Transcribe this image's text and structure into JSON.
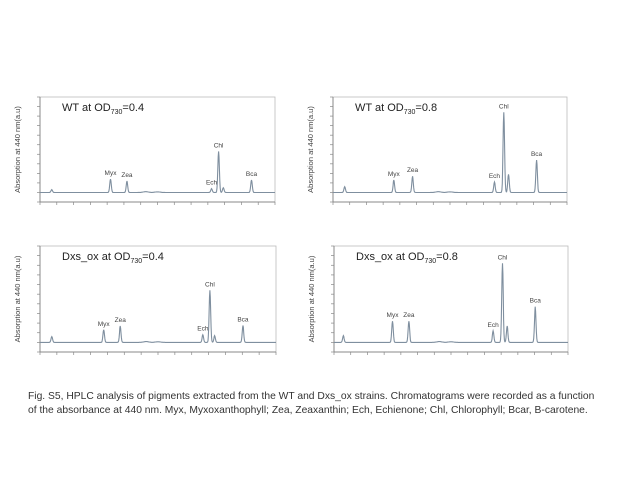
{
  "chart_data": [
    {
      "type": "line",
      "title": {
        "pre": "WT at OD",
        "sub": "730",
        "post": "=0.4"
      },
      "ylabel": "Absorption at 440 nm(a.u)",
      "xlim": [
        0,
        100
      ],
      "ylim": [
        -1,
        10
      ],
      "grid": false,
      "peaks": [
        {
          "x": 5,
          "y": 0.3
        },
        {
          "x": 30,
          "y": 1.4,
          "label": "Myx"
        },
        {
          "x": 37,
          "y": 1.2,
          "label": "Zea"
        },
        {
          "x": 73,
          "y": 0.4,
          "label": "Ech"
        },
        {
          "x": 76,
          "y": 4.3,
          "label": "Chl"
        },
        {
          "x": 78,
          "y": 0.5
        },
        {
          "x": 90,
          "y": 1.3,
          "label": "Bca"
        }
      ]
    },
    {
      "type": "line",
      "title": {
        "pre": "WT at OD",
        "sub": "730",
        "post": "=0.8"
      },
      "ylabel": "Absorption at 440 nm(a.u)",
      "xlim": [
        0,
        100
      ],
      "ylim": [
        -1,
        10
      ],
      "grid": false,
      "peaks": [
        {
          "x": 5,
          "y": 0.6
        },
        {
          "x": 26,
          "y": 1.3,
          "label": "Myx"
        },
        {
          "x": 34,
          "y": 1.7,
          "label": "Zea"
        },
        {
          "x": 69,
          "y": 1.1,
          "label": "Ech"
        },
        {
          "x": 73,
          "y": 8.4,
          "label": "Chl"
        },
        {
          "x": 75,
          "y": 1.9
        },
        {
          "x": 87,
          "y": 3.4,
          "label": "Bca"
        }
      ]
    },
    {
      "type": "line",
      "title": {
        "pre": "Dxs_ox at OD",
        "sub": "730",
        "post": "=0.4"
      },
      "ylabel": "Absorption at 440 nm(a.u)",
      "xlim": [
        0,
        100
      ],
      "ylim": [
        -1,
        10
      ],
      "grid": false,
      "peaks": [
        {
          "x": 5,
          "y": 0.6
        },
        {
          "x": 27,
          "y": 1.3,
          "label": "Myx"
        },
        {
          "x": 34,
          "y": 1.7,
          "label": "Zea"
        },
        {
          "x": 69,
          "y": 0.8,
          "label": "Ech"
        },
        {
          "x": 72,
          "y": 5.4,
          "label": "Chl"
        },
        {
          "x": 74,
          "y": 0.7
        },
        {
          "x": 86,
          "y": 1.75,
          "label": "Bca"
        }
      ]
    },
    {
      "type": "line",
      "title": {
        "pre": "Dxs_ox at OD",
        "sub": "730",
        "post": "=0.8"
      },
      "ylabel": "Absorption at 440 nm(a.u)",
      "xlim": [
        0,
        100
      ],
      "ylim": [
        -1,
        10
      ],
      "grid": false,
      "peaks": [
        {
          "x": 4,
          "y": 0.7
        },
        {
          "x": 25,
          "y": 2.2,
          "label": "Myx"
        },
        {
          "x": 32,
          "y": 2.2,
          "label": "Zea"
        },
        {
          "x": 68,
          "y": 1.2,
          "label": "Ech"
        },
        {
          "x": 72,
          "y": 8.2,
          "label": "Chl"
        },
        {
          "x": 74,
          "y": 1.7
        },
        {
          "x": 86,
          "y": 3.7,
          "label": "Bca"
        }
      ]
    }
  ],
  "colors": {
    "trace": "#7f8f9f",
    "axis": "#888888",
    "text": "#222222"
  },
  "caption": "Fig. S5, HPLC analysis of pigments extracted from the WT and Dxs_ox strains. Chromatograms were recorded as a function of the absorbance at 440 nm. Myx, Myxoxanthophyll; Zea, Zeaxanthin; Ech, Echienone; Chl, Chlorophyll; Bcar, B-carotene."
}
